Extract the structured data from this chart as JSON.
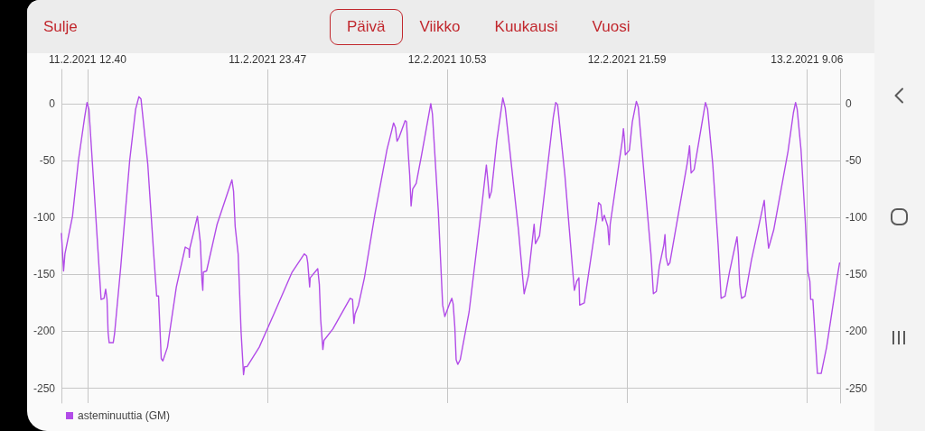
{
  "chart_data": {
    "type": "line",
    "annotations": [
      "Sulje",
      "Päivä",
      "Viikko",
      "Kuukausi",
      "Vuosi"
    ],
    "x": [
      "2021-02-11T11:03",
      "2021-02-11T11:11",
      "2021-02-11T11:16",
      "2021-02-11T11:44",
      "2021-02-11T12:06",
      "2021-02-11T12:29",
      "2021-02-11T12:38",
      "2021-02-11T12:45",
      "2021-02-11T13:08",
      "2021-02-11T13:30",
      "2021-02-11T13:41",
      "2021-02-11T13:47",
      "2021-02-11T13:52",
      "2021-02-11T13:56",
      "2021-02-11T14:00",
      "2021-02-11T14:15",
      "2021-02-11T14:20",
      "2021-02-11T14:43",
      "2021-02-11T15:16",
      "2021-02-11T15:38",
      "2021-02-11T15:50",
      "2021-02-11T15:58",
      "2021-02-11T16:23",
      "2021-02-11T16:45",
      "2021-02-11T16:56",
      "2021-02-11T17:03",
      "2021-02-11T17:13",
      "2021-02-11T17:19",
      "2021-02-11T17:36",
      "2021-02-11T18:09",
      "2021-02-11T18:42",
      "2021-02-11T18:56",
      "2021-02-11T18:57",
      "2021-02-11T18:59",
      "2021-02-11T19:27",
      "2021-02-11T19:38",
      "2021-02-11T19:44",
      "2021-02-11T19:47",
      "2021-02-11T19:49",
      "2021-02-11T20:01",
      "2021-02-11T20:40",
      "2021-02-11T21:35",
      "2021-02-11T21:41",
      "2021-02-11T21:47",
      "2021-02-11T21:58",
      "2021-02-11T22:09",
      "2021-02-11T22:18",
      "2021-02-11T22:22",
      "2021-02-11T22:31",
      "2021-02-11T23:16",
      "2021-02-12T00:12",
      "2021-02-12T01:18",
      "2021-02-12T02:03",
      "2021-02-12T02:12",
      "2021-02-12T02:16",
      "2021-02-12T02:23",
      "2021-02-12T02:25",
      "2021-02-12T02:53",
      "2021-02-12T02:59",
      "2021-02-12T03:04",
      "2021-02-12T03:12",
      "2021-02-12T03:16",
      "2021-02-12T03:49",
      "2021-02-12T04:53",
      "2021-02-12T05:02",
      "2021-02-12T05:07",
      "2021-02-12T05:11",
      "2021-02-12T05:24",
      "2021-02-12T05:46",
      "2021-02-12T06:25",
      "2021-02-12T07:10",
      "2021-02-12T07:27",
      "2021-02-12T07:34",
      "2021-02-12T07:41",
      "2021-02-12T07:47",
      "2021-02-12T07:54",
      "2021-02-12T08:17",
      "2021-02-12T08:22",
      "2021-02-12T08:28",
      "2021-02-12T08:34",
      "2021-02-12T08:39",
      "2021-02-12T08:45",
      "2021-02-12T08:58",
      "2021-02-12T09:18",
      "2021-02-12T09:52",
      "2021-02-12T09:58",
      "2021-02-12T10:20",
      "2021-02-12T10:36",
      "2021-02-12T10:44",
      "2021-02-12T11:01",
      "2021-02-12T11:10",
      "2021-02-12T11:15",
      "2021-02-12T11:21",
      "2021-02-12T11:26",
      "2021-02-12T11:32",
      "2021-02-12T11:41",
      "2021-02-12T12:14",
      "2021-02-12T13:01",
      "2021-02-12T13:18",
      "2021-02-12T13:24",
      "2021-02-12T13:29",
      "2021-02-12T13:37",
      "2021-02-12T13:57",
      "2021-02-12T14:19",
      "2021-02-12T14:28",
      "2021-02-12T15:17",
      "2021-02-12T15:38",
      "2021-02-12T15:54",
      "2021-02-12T16:09",
      "2021-02-12T16:15",
      "2021-02-12T16:20",
      "2021-02-12T16:35",
      "2021-02-12T17:26",
      "2021-02-12T17:35",
      "2021-02-12T17:42",
      "2021-02-12T18:09",
      "2021-02-12T18:44",
      "2021-02-12T18:53",
      "2021-02-12T19:01",
      "2021-02-12T19:04",
      "2021-02-12T19:21",
      "2021-02-12T20:07",
      "2021-02-12T20:14",
      "2021-02-12T20:22",
      "2021-02-12T20:28",
      "2021-02-12T20:35",
      "2021-02-12T20:48",
      "2021-02-12T20:53",
      "2021-02-12T20:57",
      "2021-02-12T21:42",
      "2021-02-12T21:46",
      "2021-02-12T21:50",
      "2021-02-12T21:53",
      "2021-02-12T22:08",
      "2021-02-12T22:19",
      "2021-02-12T22:34",
      "2021-02-12T22:41",
      "2021-02-12T23:28",
      "2021-02-12T23:37",
      "2021-02-12T23:48",
      "2021-02-12T23:59",
      "2021-02-13T00:16",
      "2021-02-13T00:20",
      "2021-02-13T00:24",
      "2021-02-13T00:31",
      "2021-02-13T00:38",
      "2021-02-13T01:42",
      "2021-02-13T01:47",
      "2021-02-13T01:51",
      "2021-02-13T01:57",
      "2021-02-13T02:08",
      "2021-02-13T02:50",
      "2021-02-13T02:58",
      "2021-02-13T03:17",
      "2021-02-13T03:37",
      "2021-02-13T03:48",
      "2021-02-13T04:03",
      "2021-02-13T04:19",
      "2021-02-13T04:47",
      "2021-02-13T04:52",
      "2021-02-13T04:57",
      "2021-02-13T05:04",
      "2021-02-13T05:17",
      "2021-02-13T05:40",
      "2021-02-13T06:28",
      "2021-02-13T06:33",
      "2021-02-13T06:44",
      "2021-02-13T07:03",
      "2021-02-13T07:56",
      "2021-02-13T08:16",
      "2021-02-13T08:24",
      "2021-02-13T08:30",
      "2021-02-13T08:44",
      "2021-02-13T09:00",
      "2021-02-13T09:09",
      "2021-02-13T09:17",
      "2021-02-13T09:20",
      "2021-02-13T09:28",
      "2021-02-13T09:37",
      "2021-02-13T09:45",
      "2021-02-13T09:59",
      "2021-02-13T10:19",
      "2021-02-13T10:58",
      "2021-02-13T11:07"
    ],
    "series": [
      {
        "name": "asteminuuttia (GM)",
        "color": "#b24ce8",
        "values": [
          -114,
          -147,
          -132,
          -99,
          -50,
          -12,
          1,
          -5,
          -90,
          -172,
          -171,
          -163,
          -172,
          -201,
          -210,
          -210,
          -202,
          -143,
          -50,
          -5,
          6,
          4,
          -53,
          -132,
          -169,
          -169,
          -224,
          -226,
          -214,
          -161,
          -126,
          -128,
          -135,
          -127,
          -99,
          -122,
          -156,
          -164,
          -148,
          -147,
          -106,
          -67,
          -77,
          -108,
          -132,
          -201,
          -238,
          -231,
          -231,
          -214,
          -184,
          -148,
          -132,
          -134,
          -140,
          -161,
          -153,
          -145,
          -159,
          -190,
          -216,
          -208,
          -198,
          -171,
          -172,
          -193,
          -185,
          -177,
          -153,
          -97,
          -40,
          -24,
          -17,
          -21,
          -33,
          -30,
          -15,
          -16,
          -42,
          -63,
          -90,
          -75,
          -70,
          -45,
          0,
          -9,
          -95,
          -177,
          -187,
          -176,
          -171,
          -176,
          -196,
          -225,
          -229,
          -225,
          -183,
          -90,
          -54,
          -69,
          -83,
          -77,
          -32,
          5,
          -4,
          -111,
          -167,
          -151,
          -119,
          -106,
          -123,
          -116,
          -12,
          1,
          -1,
          -63,
          -164,
          -156,
          -153,
          -177,
          -175,
          -101,
          -87,
          -89,
          -103,
          -98,
          -108,
          -124,
          -106,
          -32,
          -22,
          -32,
          -45,
          -41,
          -16,
          2,
          -3,
          -132,
          -167,
          -165,
          -143,
          -124,
          -115,
          -135,
          -142,
          -140,
          -53,
          -45,
          -37,
          -61,
          -58,
          1,
          -5,
          -53,
          -124,
          -171,
          -169,
          -148,
          -117,
          -132,
          -159,
          -171,
          -169,
          -138,
          -85,
          -101,
          -127,
          -111,
          -42,
          -8,
          1,
          -5,
          -40,
          -103,
          -147,
          -156,
          -172,
          -172,
          -206,
          -237,
          -237,
          -214,
          -153,
          -140
        ]
      }
    ],
    "xlim": [
      "2021-02-11T11:03",
      "2021-02-13T11:09"
    ],
    "xticks": [
      {
        "value": "2021-02-11T12:40",
        "label": "11.2.2021 12.40"
      },
      {
        "value": "2021-02-11T23:47",
        "label": "11.2.2021 23.47"
      },
      {
        "value": "2021-02-12T10:53",
        "label": "12.2.2021 10.53"
      },
      {
        "value": "2021-02-12T21:59",
        "label": "12.2.2021 21.59"
      },
      {
        "value": "2021-02-13T09:06",
        "label": "13.2.2021 9.06"
      }
    ],
    "ylim": [
      -263,
      30
    ],
    "yticks": [
      -250,
      -200,
      -150,
      -100,
      -50,
      0
    ],
    "y2lim": [
      -263,
      30
    ],
    "y2ticks": [
      -250,
      -200,
      -150,
      -100,
      -50,
      0
    ],
    "grid": true,
    "legend": "bottom left"
  }
}
